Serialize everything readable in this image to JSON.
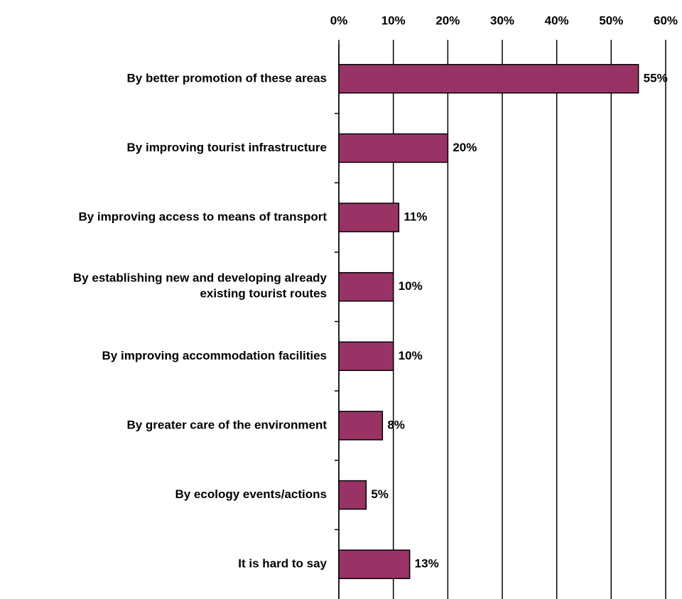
{
  "chart_data": {
    "type": "bar",
    "orientation": "horizontal",
    "categories": [
      "By better promotion of these areas",
      "By improving tourist infrastructure",
      "By improving access to means of transport",
      "By establishing new and developing already\nexisting tourist routes",
      "By improving accommodation facilities",
      "By greater care of the environment",
      "By ecology events/actions",
      "It is hard to say"
    ],
    "values": [
      55,
      20,
      11,
      10,
      10,
      8,
      5,
      13
    ],
    "value_labels": [
      "55%",
      "20%",
      "11%",
      "10%",
      "10%",
      "8%",
      "5%",
      "13%"
    ],
    "color": "#993366",
    "xlim": [
      0,
      60
    ],
    "xticks": [
      {
        "value": 0,
        "label": "0%"
      },
      {
        "value": 10,
        "label": "10%"
      },
      {
        "value": 20,
        "label": "20%"
      },
      {
        "value": 30,
        "label": "30%"
      },
      {
        "value": 40,
        "label": "40%"
      },
      {
        "value": 50,
        "label": "50%"
      },
      {
        "value": 60,
        "label": "60%"
      }
    ],
    "grid": true
  }
}
